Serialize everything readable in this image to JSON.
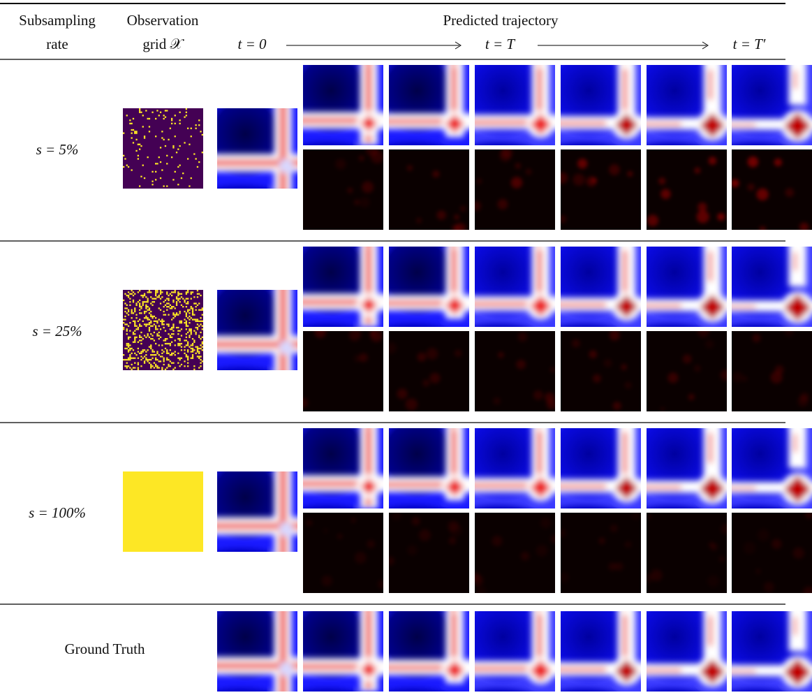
{
  "header": {
    "rate": [
      "Subsampling",
      "rate"
    ],
    "grid": [
      "Observation",
      "grid 𝒳"
    ],
    "trajectory": "Predicted trajectory",
    "t_start": "t = 0",
    "t_mid": "t = T",
    "t_end": "t = T′"
  },
  "rows": [
    {
      "label": "s = 5%"
    },
    {
      "label": "s = 25%"
    },
    {
      "label": "s = 100%"
    }
  ],
  "ground_truth": "Ground Truth"
}
